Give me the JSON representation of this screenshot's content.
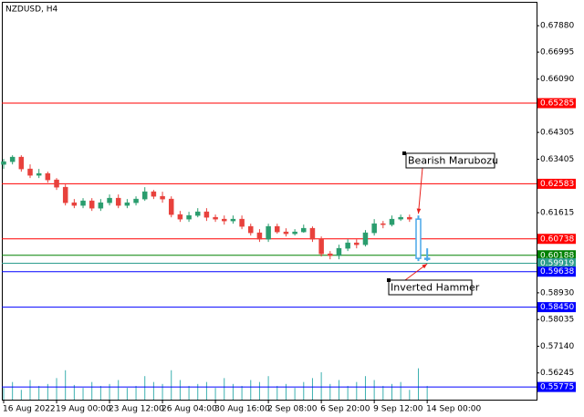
{
  "chart_data": {
    "type": "candlestick",
    "title": "NZDUSD, H4",
    "categories": [
      "16 Aug 2022",
      null,
      null,
      null,
      null,
      null,
      "19 Aug 00:00",
      null,
      null,
      null,
      null,
      null,
      "23 Aug 12:00",
      null,
      null,
      null,
      null,
      null,
      "26 Aug 04:00",
      null,
      null,
      null,
      null,
      null,
      "30 Aug 16:00",
      null,
      null,
      null,
      null,
      null,
      "2 Sep 08:00",
      null,
      null,
      null,
      null,
      null,
      "6 Sep 20:00",
      null,
      null,
      null,
      null,
      null,
      "9 Sep 12:00",
      null,
      null,
      null,
      null,
      null,
      "14 Sep 00:00"
    ],
    "open": [
      0.63233,
      0.63325,
      0.63478,
      0.63081,
      0.62867,
      0.62928,
      0.62714,
      0.62469,
      0.61949,
      0.61858,
      0.62011,
      0.61766,
      0.61949,
      0.62102,
      0.61858,
      0.61949,
      0.62072,
      0.62317,
      0.62163,
      0.62072,
      0.61552,
      0.61399,
      0.61521,
      0.61644,
      0.6146,
      0.61399,
      0.61338,
      0.61399,
      0.61155,
      0.60941,
      0.60727,
      0.61155,
      0.60971,
      0.6091,
      0.60971,
      0.61093,
      0.60727,
      0.60237,
      0.60176,
      0.60421,
      0.60604,
      0.60543,
      0.60941,
      0.61246,
      0.61215,
      0.61399,
      0.6146,
      0.61399,
      0.60054
    ],
    "high": [
      0.63417,
      0.63539,
      0.63539,
      0.63233,
      0.63081,
      0.62989,
      0.62775,
      0.62561,
      0.62072,
      0.62102,
      0.62102,
      0.62072,
      0.62225,
      0.62225,
      0.62072,
      0.62163,
      0.62469,
      0.62377,
      0.62317,
      0.62163,
      0.61674,
      0.61644,
      0.61766,
      0.61766,
      0.61552,
      0.61521,
      0.61521,
      0.61521,
      0.61246,
      0.61063,
      0.61246,
      0.61246,
      0.61093,
      0.61063,
      0.61215,
      0.61155,
      0.60818,
      0.60329,
      0.60543,
      0.60727,
      0.60727,
      0.61032,
      0.61399,
      0.61338,
      0.61521,
      0.61552,
      0.61552,
      0.61521,
      0.60421
    ],
    "low": [
      0.63081,
      0.63233,
      0.62989,
      0.62775,
      0.62775,
      0.62622,
      0.62377,
      0.61858,
      0.61766,
      0.61766,
      0.61674,
      0.61674,
      0.61858,
      0.61766,
      0.61766,
      0.61858,
      0.62011,
      0.62072,
      0.61949,
      0.6146,
      0.61307,
      0.61307,
      0.6146,
      0.61338,
      0.61307,
      0.61215,
      0.61246,
      0.61063,
      0.60849,
      0.60635,
      0.60635,
      0.6091,
      0.60818,
      0.60849,
      0.60941,
      0.60635,
      0.60146,
      0.60054,
      0.60054,
      0.60329,
      0.60421,
      0.60482,
      0.60849,
      0.61093,
      0.61155,
      0.61338,
      0.61307,
      0.59993,
      0.59993
    ],
    "close": [
      0.63325,
      0.63478,
      0.63081,
      0.62867,
      0.62928,
      0.62714,
      0.62469,
      0.61949,
      0.61858,
      0.62011,
      0.61766,
      0.61949,
      0.62102,
      0.61858,
      0.61949,
      0.62072,
      0.62317,
      0.62163,
      0.62072,
      0.61552,
      0.61399,
      0.61521,
      0.61644,
      0.6146,
      0.61399,
      0.61338,
      0.61399,
      0.61155,
      0.60941,
      0.60727,
      0.61155,
      0.60971,
      0.6091,
      0.60971,
      0.61093,
      0.60727,
      0.60237,
      0.60176,
      0.60421,
      0.60604,
      0.60543,
      0.60941,
      0.61246,
      0.61215,
      0.61399,
      0.6146,
      0.61399,
      0.60085,
      0.60085
    ],
    "volume": [
      12,
      18,
      10,
      20,
      14,
      16,
      22,
      30,
      15,
      12,
      18,
      14,
      16,
      20,
      12,
      14,
      24,
      18,
      16,
      30,
      20,
      14,
      16,
      18,
      12,
      22,
      16,
      14,
      20,
      18,
      24,
      14,
      16,
      12,
      18,
      22,
      28,
      16,
      20,
      14,
      18,
      24,
      20,
      14,
      16,
      18,
      10,
      32,
      14
    ],
    "volume_lim": [
      0,
      40
    ],
    "volume_color": "#3cb0b0",
    "up_color": "#2a9d6e",
    "down_color": "#e8413c",
    "highlight": {
      "color": "#4aa8e8",
      "candles": [
        47,
        48
      ]
    },
    "ylim": [
      0.5535,
      0.6868
    ],
    "yticks": [
      {
        "value": 0.6788,
        "label": "0.67880"
      },
      0.66995,
      {
        "value": 0.6609,
        "label": "0.66090"
      },
      0.64305,
      0.63405,
      0.61615,
      {
        "value": 0.5893,
        "label": "0.58930"
      },
      0.58035,
      {
        "value": 0.5714,
        "label": "0.57140"
      },
      0.56245
    ],
    "levels": [
      {
        "value": 0.65285,
        "color": "#ff0000"
      },
      {
        "value": 0.62583,
        "color": "#ff0000"
      },
      {
        "value": 0.60738,
        "color": "#ff0000"
      },
      {
        "value": 0.60188,
        "color": "#008000"
      },
      {
        "value": 0.59919,
        "color": "#2e9e8e"
      },
      {
        "value": 0.59638,
        "color": "#0000ff"
      },
      {
        "value": 0.5845,
        "label": "0.58450",
        "color": "#0000ff"
      },
      {
        "value": 0.55775,
        "color": "#0000ff"
      }
    ],
    "annotations": [
      {
        "text": "Bearish Marubozu",
        "candle": 47
      },
      {
        "text": "Inverted Hammer",
        "candle": 48
      }
    ]
  }
}
